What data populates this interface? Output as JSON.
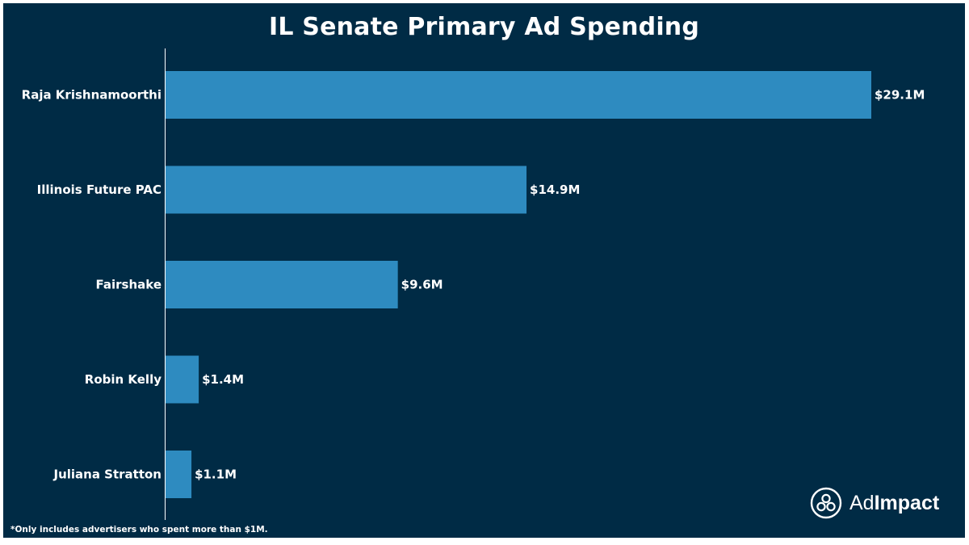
{
  "chart_data": {
    "type": "bar",
    "orientation": "horizontal",
    "title": "IL Senate Primary Ad Spending",
    "categories": [
      "Raja Krishnamoorthi",
      "Illinois Future PAC",
      "Fairshake",
      "Robin Kelly",
      "Juliana Stratton"
    ],
    "values": [
      29.1,
      14.9,
      9.6,
      1.4,
      1.1
    ],
    "value_labels": [
      "$29.1M",
      "$14.9M",
      "$9.6M",
      "$1.4M",
      "$1.1M"
    ],
    "unit": "$M",
    "xlim": [
      0,
      29.1
    ],
    "grid": false,
    "legend": "none"
  },
  "footnote": "*Only includes advertisers who spent more than $1M.",
  "logo": {
    "text_light": "Ad",
    "text_bold": "Impact",
    "icon": "adimpact-logo-icon"
  },
  "colors": {
    "background": "#002b45",
    "bar": "#2e8bc0",
    "text": "#ffffff",
    "axis": "#ffffff"
  }
}
